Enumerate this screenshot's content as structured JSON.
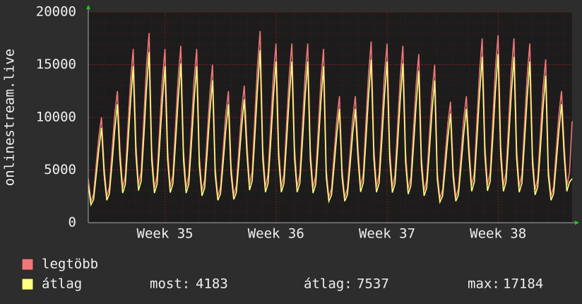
{
  "chart_data": {
    "type": "line",
    "ylabel": "onlinestream.live",
    "categories": [
      null,
      null,
      null,
      null,
      null,
      null,
      null,
      null,
      null,
      null,
      null,
      null,
      null,
      null,
      null,
      null,
      null,
      null,
      null,
      null,
      null,
      null,
      null,
      null,
      null,
      null,
      null,
      null,
      null,
      "Week 35",
      null,
      null,
      null,
      null,
      null,
      null,
      null,
      null,
      null,
      null,
      null,
      null,
      null,
      null,
      null,
      null,
      null,
      null,
      null,
      null,
      null,
      null,
      null,
      null,
      null,
      null,
      null,
      null,
      null,
      null,
      null,
      null,
      null,
      null,
      null,
      null,
      null,
      null,
      null,
      null,
      null,
      "Week 36",
      null,
      null,
      null,
      null,
      null,
      null,
      null,
      null,
      null,
      null,
      null,
      null,
      null,
      null,
      null,
      null,
      null,
      null,
      null,
      null,
      null,
      null,
      null,
      null,
      null,
      null,
      null,
      null,
      null,
      null,
      null,
      null,
      null,
      null,
      null,
      null,
      null,
      null,
      null,
      null,
      null,
      "Week 37",
      null,
      null,
      null,
      null,
      null,
      null,
      null,
      null,
      null,
      null,
      null,
      null,
      null,
      null,
      null,
      null,
      null,
      null,
      null,
      null,
      null,
      null,
      null,
      null,
      null,
      null,
      null,
      null,
      null,
      null,
      null,
      null,
      null,
      null,
      null,
      null,
      null,
      null,
      null,
      null,
      null,
      "Week 38",
      null,
      null,
      null,
      null,
      null,
      null,
      null,
      null,
      null,
      null,
      null,
      null,
      null,
      null,
      null,
      null,
      null,
      null,
      null,
      null,
      null,
      null,
      null,
      null,
      null,
      null,
      null,
      null
    ],
    "series": [
      {
        "name": "legtöbb",
        "color": "#f07878",
        "values": [
          4200,
          2000,
          2700,
          5500,
          8200,
          10000,
          5250,
          2500,
          3380,
          6880,
          10250,
          12500,
          6930,
          3300,
          4460,
          9080,
          13530,
          16500,
          7560,
          3600,
          4860,
          9900,
          14760,
          18000,
          6930,
          3300,
          4460,
          9080,
          13530,
          16500,
          7060,
          3360,
          4540,
          9240,
          13780,
          16800,
          6930,
          3300,
          4460,
          9080,
          13530,
          16500,
          6300,
          3000,
          4050,
          8250,
          12300,
          15000,
          5250,
          2500,
          3380,
          6880,
          10250,
          12500,
          5460,
          2600,
          3510,
          7150,
          10660,
          13000,
          7640,
          3640,
          4910,
          10010,
          14920,
          18200,
          7140,
          3400,
          4590,
          9350,
          13940,
          17000,
          7140,
          3400,
          4590,
          9350,
          13940,
          17000,
          7140,
          3400,
          4590,
          9350,
          13940,
          17000,
          6930,
          3300,
          4460,
          9080,
          13530,
          16500,
          5040,
          2400,
          3240,
          6600,
          9840,
          12000,
          5040,
          2400,
          3240,
          6600,
          9840,
          12000,
          7220,
          3440,
          4640,
          9460,
          14100,
          17200,
          7140,
          3400,
          4590,
          9350,
          13940,
          17000,
          7060,
          3360,
          4540,
          9240,
          13780,
          16800,
          6720,
          3200,
          4320,
          8800,
          13120,
          16000,
          6300,
          3000,
          4050,
          8250,
          12300,
          15000,
          4830,
          2300,
          3110,
          6330,
          9430,
          11500,
          5040,
          2400,
          3240,
          6600,
          9840,
          12000,
          7350,
          3500,
          4730,
          9630,
          14350,
          17500,
          7480,
          3560,
          4810,
          9790,
          14600,
          17800,
          7350,
          3500,
          4730,
          9630,
          14350,
          17500,
          7140,
          3400,
          4590,
          9350,
          13940,
          17000,
          6510,
          3100,
          4190,
          8530,
          12710,
          15500,
          5250,
          2500,
          3380,
          6880,
          10250,
          12500,
          7350,
          3500,
          4730,
          9630
        ]
      },
      {
        "name": "átlag",
        "color": "#ffff80",
        "values": [
          3600,
          1700,
          2200,
          4500,
          7000,
          9000,
          4500,
          2130,
          2750,
          5630,
          8750,
          11250,
          5940,
          2810,
          3630,
          7430,
          11550,
          14850,
          6480,
          3060,
          3960,
          8100,
          12600,
          16200,
          5940,
          2810,
          3630,
          7430,
          11550,
          14850,
          6050,
          2860,
          3700,
          7560,
          11760,
          15120,
          5940,
          2810,
          3630,
          7430,
          11550,
          14850,
          5400,
          2550,
          3300,
          6750,
          10500,
          13500,
          4500,
          2130,
          2750,
          5630,
          8750,
          11250,
          4680,
          2210,
          2860,
          5850,
          9100,
          11700,
          6550,
          3090,
          4000,
          8190,
          12740,
          16380,
          6120,
          2890,
          3740,
          7650,
          11900,
          15300,
          6120,
          2890,
          3740,
          7650,
          11900,
          15300,
          6120,
          2890,
          3740,
          7650,
          11900,
          15300,
          5940,
          2810,
          3630,
          7430,
          11550,
          14850,
          4320,
          2040,
          2640,
          5400,
          8400,
          10800,
          4320,
          2040,
          2640,
          5400,
          8400,
          10800,
          6190,
          2920,
          3780,
          7740,
          12040,
          15480,
          6120,
          2890,
          3740,
          7650,
          11900,
          15300,
          6050,
          2860,
          3700,
          7560,
          11760,
          15120,
          5760,
          2720,
          3520,
          7200,
          11200,
          14400,
          5400,
          2550,
          3300,
          6750,
          10500,
          13500,
          4140,
          1960,
          2530,
          5180,
          8050,
          10350,
          4320,
          2040,
          2640,
          5400,
          8400,
          10800,
          6300,
          2980,
          3850,
          7880,
          12250,
          15750,
          6410,
          3030,
          3920,
          8010,
          12460,
          16020,
          6300,
          2980,
          3850,
          7880,
          12250,
          15750,
          6120,
          2890,
          3740,
          7650,
          11900,
          15300,
          5580,
          2640,
          3410,
          6980,
          10850,
          13950,
          4500,
          2130,
          2750,
          5630,
          8750,
          11250,
          6300,
          2980,
          3850,
          4183
        ]
      }
    ],
    "stats": [
      {
        "label": "most:",
        "value": 4183
      },
      {
        "label": "átlag:",
        "value": 7537
      },
      {
        "label": "max:",
        "value": 17184
      }
    ],
    "ylim": [
      0,
      20000
    ],
    "yticks": [
      0,
      5000,
      10000,
      15000,
      20000
    ],
    "grid": true
  }
}
